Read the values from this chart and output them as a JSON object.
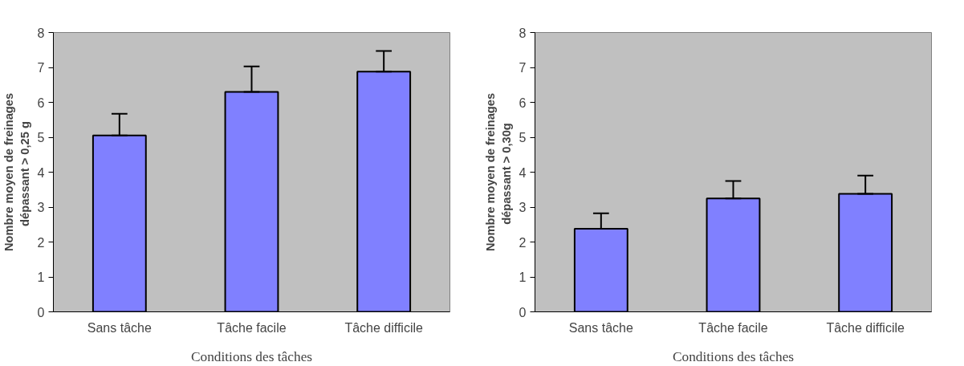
{
  "chart_data": [
    {
      "type": "bar",
      "categories": [
        "Sans tâche",
        "Tâche facile",
        "Tâche difficile"
      ],
      "values": [
        5.05,
        6.3,
        6.88
      ],
      "errors": [
        [
          5.05,
          5.67
        ],
        [
          6.3,
          7.03
        ],
        [
          6.88,
          7.47
        ]
      ],
      "color": "#8080ff",
      "ylim": [
        0,
        8
      ],
      "yticks": [
        0,
        1,
        2,
        3,
        4,
        5,
        6,
        7,
        8
      ],
      "xlabel": "Conditions des tâches",
      "ylabel": "Nombre moyen de freinages\ndépassant  > 0,25 g"
    },
    {
      "type": "bar",
      "categories": [
        "Sans tâche",
        "Tâche facile",
        "Tâche difficile"
      ],
      "values": [
        2.38,
        3.25,
        3.38
      ],
      "errors": [
        [
          2.38,
          2.82
        ],
        [
          3.25,
          3.75
        ],
        [
          3.38,
          3.9
        ]
      ],
      "color": "#8080ff",
      "ylim": [
        0,
        8
      ],
      "yticks": [
        0,
        1,
        2,
        3,
        4,
        5,
        6,
        7,
        8
      ],
      "xlabel": "Conditions des tâches",
      "ylabel": "Nombre moyen de freinages\ndépassant  > 0,30g"
    }
  ]
}
